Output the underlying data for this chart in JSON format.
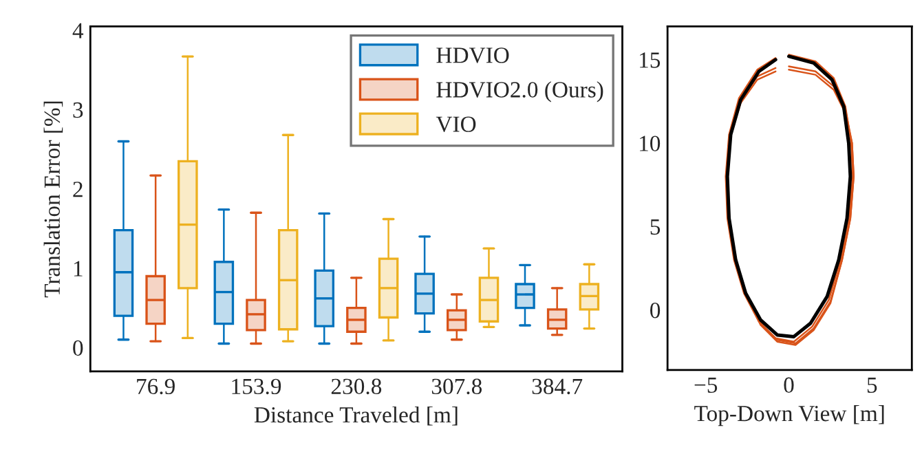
{
  "chart_data": [
    {
      "type": "box",
      "categories": [
        "76.9",
        "153.9",
        "230.8",
        "307.8",
        "384.7"
      ],
      "xlabel": "Distance Traveled [m]",
      "ylabel": "Translation Error [%]",
      "ylim": [
        -0.3,
        4.05
      ],
      "yticks": [
        0,
        1,
        2,
        3,
        4
      ],
      "legend": "top right",
      "grid": false,
      "series": [
        {
          "name": "HDVIO",
          "color": "#0072bd",
          "boxes": [
            {
              "low": 0.1,
              "q1": 0.4,
              "median": 0.95,
              "q3": 1.48,
              "high": 2.6
            },
            {
              "low": 0.05,
              "q1": 0.3,
              "median": 0.7,
              "q3": 1.08,
              "high": 1.74
            },
            {
              "low": 0.05,
              "q1": 0.27,
              "median": 0.62,
              "q3": 0.97,
              "high": 1.69
            },
            {
              "low": 0.2,
              "q1": 0.43,
              "median": 0.68,
              "q3": 0.93,
              "high": 1.4
            },
            {
              "low": 0.28,
              "q1": 0.5,
              "median": 0.67,
              "q3": 0.8,
              "high": 1.04
            }
          ]
        },
        {
          "name": "HDVIO2.0 (Ours)",
          "color": "#d95319",
          "boxes": [
            {
              "low": 0.08,
              "q1": 0.3,
              "median": 0.6,
              "q3": 0.9,
              "high": 2.17
            },
            {
              "low": 0.05,
              "q1": 0.22,
              "median": 0.42,
              "q3": 0.6,
              "high": 1.7
            },
            {
              "low": 0.05,
              "q1": 0.2,
              "median": 0.35,
              "q3": 0.5,
              "high": 0.88
            },
            {
              "low": 0.1,
              "q1": 0.22,
              "median": 0.35,
              "q3": 0.47,
              "high": 0.67
            },
            {
              "low": 0.16,
              "q1": 0.24,
              "median": 0.35,
              "q3": 0.48,
              "high": 0.75
            }
          ]
        },
        {
          "name": "VIO",
          "color": "#edb120",
          "boxes": [
            {
              "low": 0.12,
              "q1": 0.75,
              "median": 1.55,
              "q3": 2.35,
              "high": 3.67
            },
            {
              "low": 0.08,
              "q1": 0.23,
              "median": 0.85,
              "q3": 1.48,
              "high": 2.68
            },
            {
              "low": 0.09,
              "q1": 0.38,
              "median": 0.75,
              "q3": 1.12,
              "high": 1.62
            },
            {
              "low": 0.26,
              "q1": 0.33,
              "median": 0.6,
              "q3": 0.88,
              "high": 1.25
            },
            {
              "low": 0.24,
              "q1": 0.48,
              "median": 0.65,
              "q3": 0.8,
              "high": 1.05
            }
          ]
        }
      ]
    },
    {
      "type": "line",
      "xlabel": "Top-Down View [m]",
      "xlim": [
        -7.3,
        7.4
      ],
      "ylim": [
        -3.6,
        17.0
      ],
      "xticks": [
        {
          "value": -5,
          "label": "−5"
        },
        0,
        5
      ],
      "yticks": [
        0,
        5,
        10,
        15
      ],
      "grid": false,
      "marker": "none",
      "line_style": "solid",
      "series": [
        {
          "color": "#d95319",
          "x": [
            0,
            1.6,
            2.7,
            3.4,
            3.75,
            3.85,
            3.6,
            3.1,
            2.4,
            1.4,
            0.3,
            -0.8,
            -1.8,
            -2.7,
            -3.3,
            -3.7,
            -3.8,
            -3.6,
            -3.0,
            -1.9,
            -0.8
          ],
          "values": [
            15.3,
            14.9,
            13.9,
            12.2,
            10,
            8,
            5.5,
            3,
            0.6,
            -1.0,
            -1.9,
            -1.7,
            -0.7,
            1,
            3,
            5.5,
            8,
            10.5,
            12.7,
            14.4,
            15.1
          ]
        },
        {
          "color": "#d95319",
          "x": [
            0,
            1.6,
            2.7,
            3.4,
            3.8,
            3.9,
            3.7,
            3.2,
            2.5,
            1.5,
            0.4,
            -0.7,
            -1.7,
            -2.6,
            -3.2,
            -3.6,
            -3.7,
            -3.5,
            -2.9,
            -1.9,
            -0.8
          ],
          "values": [
            14.6,
            14.3,
            13.4,
            12.0,
            10,
            8,
            5.5,
            3,
            0.5,
            -1.1,
            -2.0,
            -1.8,
            -0.8,
            1,
            3,
            5.5,
            8,
            10.5,
            12.5,
            14.0,
            14.5
          ]
        },
        {
          "color": "#d95319",
          "x": [
            0,
            1.6,
            2.7,
            3.4,
            3.8,
            3.9,
            3.7,
            3.2,
            2.5,
            1.5,
            0.4,
            -0.7,
            -1.7,
            -2.6,
            -3.2,
            -3.6,
            -3.7,
            -3.5,
            -2.9,
            -1.9,
            -0.8
          ],
          "values": [
            14.4,
            14.1,
            13.2,
            11.8,
            10,
            8,
            5.5,
            3,
            0.4,
            -1.2,
            -2.1,
            -1.9,
            -0.9,
            1,
            3,
            5.5,
            8,
            10.5,
            12.4,
            13.8,
            14.3
          ]
        },
        {
          "color": "#000000",
          "x": [
            0,
            1.5,
            2.6,
            3.3,
            3.6,
            3.7,
            3.5,
            3.0,
            2.3,
            1.3,
            0.3,
            -0.7,
            -1.7,
            -2.6,
            -3.2,
            -3.6,
            -3.7,
            -3.5,
            -2.9,
            -1.8,
            -0.8
          ],
          "values": [
            15.2,
            14.8,
            13.8,
            12.2,
            10,
            8,
            5.5,
            3,
            0.8,
            -0.8,
            -1.6,
            -1.5,
            -0.6,
            1,
            3,
            5.5,
            8,
            10.5,
            12.6,
            14.3,
            15.0
          ]
        }
      ]
    }
  ]
}
